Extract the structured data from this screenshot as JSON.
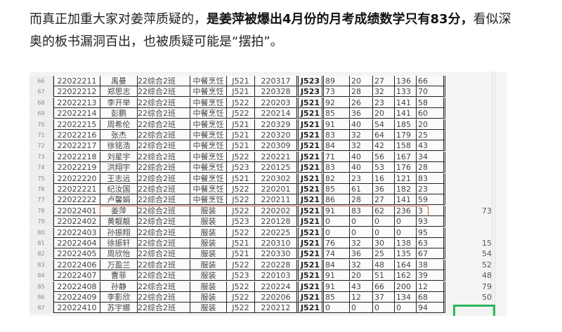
{
  "article": {
    "text_before": "而真正加重大家对姜萍质疑的，",
    "text_bold": "是姜萍被爆出4月份的月考成绩数学只有83分，",
    "text_after": "看似深奥的板书漏洞百出，也被质疑可能是“摆拍”。"
  },
  "highlight_color": "#d06050",
  "rows": [
    [
      "66",
      "22022211",
      "禹曼",
      "22综合2班",
      "中餐烹饪",
      "J521",
      "220317",
      "J523",
      "89",
      "20",
      "27",
      "136",
      "66",
      ""
    ],
    [
      "67",
      "22022212",
      "郑思志",
      "22综合2班",
      "中餐烹饪",
      "J521",
      "220328",
      "J523",
      "73",
      "28",
      "32",
      "133",
      "70",
      ""
    ],
    [
      "68",
      "22022213",
      "李开举",
      "22综合2班",
      "中餐烹饪",
      "J522",
      "220203",
      "J521",
      "92",
      "26",
      "23",
      "141",
      "58",
      ""
    ],
    [
      "69",
      "22022214",
      "彭鹏",
      "22综合2班",
      "中餐烹饪",
      "J522",
      "220214",
      "J521",
      "85",
      "36",
      "20",
      "141",
      "60",
      ""
    ],
    [
      "70",
      "22022215",
      "周希伦",
      "22综合2班",
      "中餐烹饪",
      "J521",
      "220329",
      "J521",
      "91",
      "40",
      "54",
      "185",
      "20",
      ""
    ],
    [
      "71",
      "22022216",
      "张杰",
      "22综合2班",
      "中餐烹饪",
      "J521",
      "220320",
      "J521",
      "83",
      "32",
      "64",
      "179",
      "25",
      ""
    ],
    [
      "72",
      "22022217",
      "徐铭浩",
      "22综合2班",
      "中餐烹饪",
      "J521",
      "220309",
      "J521",
      "84",
      "32",
      "42",
      "158",
      "43",
      ""
    ],
    [
      "73",
      "22022218",
      "刘星宇",
      "22综合2班",
      "中餐烹饪",
      "J522",
      "220221",
      "J521",
      "71",
      "40",
      "56",
      "167",
      "34",
      ""
    ],
    [
      "74",
      "22022219",
      "洪翔宇",
      "22综合2班",
      "中餐烹饪",
      "J523",
      "220125",
      "J521",
      "83",
      "40",
      "53",
      "176",
      "28",
      ""
    ],
    [
      "75",
      "22022220",
      "王志远",
      "22综合2班",
      "中餐烹饪",
      "J521",
      "220302",
      "J521",
      "82",
      "23",
      "16",
      "121",
      "83",
      ""
    ],
    [
      "76",
      "22022221",
      "纪汝国",
      "22综合2班",
      "中餐烹饪",
      "J522",
      "220201",
      "J521",
      "85",
      "61",
      "36",
      "182",
      "23",
      ""
    ],
    [
      "77",
      "22022222",
      "卢馨娟",
      "22综合2班",
      "中餐烹饪",
      "J522",
      "220211",
      "J521",
      "86",
      "28",
      "27",
      "141",
      "59",
      ""
    ],
    [
      "78",
      "22022401",
      "姜萍",
      "22综合2班",
      "服装",
      "J522",
      "220202",
      "J521",
      "91",
      "83",
      "62",
      "236",
      "3",
      "73"
    ],
    [
      "79",
      "22022402",
      "黄靓靓",
      "22综合2班",
      "服装",
      "J523",
      "220128",
      "J521",
      "0",
      "0",
      "0",
      "0",
      "93",
      ""
    ],
    [
      "80",
      "22022403",
      "孙振翔",
      "22综合2班",
      "服装",
      "J522",
      "220225",
      "J521",
      "0",
      "0",
      "0",
      "0",
      "95",
      ""
    ],
    [
      "81",
      "22022404",
      "徐振轩",
      "22综合2班",
      "服装",
      "J521",
      "220310",
      "J521",
      "76",
      "32",
      "30",
      "138",
      "63",
      "15"
    ],
    [
      "82",
      "22022405",
      "周欣怡",
      "22综合2班",
      "服装",
      "J521",
      "220330",
      "J521",
      "74",
      "36",
      "25",
      "135",
      "67",
      "54"
    ],
    [
      "83",
      "22022406",
      "万盈兰",
      "22综合2班",
      "服装",
      "J522",
      "220228",
      "J521",
      "84",
      "32",
      "48",
      "164",
      "38",
      "52"
    ],
    [
      "84",
      "22022407",
      "曹菲",
      "22综合2班",
      "服装",
      "J523",
      "220103",
      "J521",
      "91",
      "20",
      "51",
      "162",
      "39",
      "48"
    ],
    [
      "85",
      "22022408",
      "孙静",
      "22综合2班",
      "服装",
      "J522",
      "220224",
      "J521",
      "91",
      "43",
      "66",
      "200",
      "12",
      "79"
    ],
    [
      "86",
      "22022409",
      "李影欣",
      "22综合2班",
      "服装",
      "J522",
      "220206",
      "J521",
      "85",
      "12",
      "37",
      "134",
      "68",
      "50"
    ],
    [
      "87",
      "22022410",
      "苏宇娜",
      "22综合2班",
      "服装",
      "J522",
      "220212",
      "J521",
      "0",
      "0",
      "0",
      "0",
      "94",
      ""
    ]
  ]
}
